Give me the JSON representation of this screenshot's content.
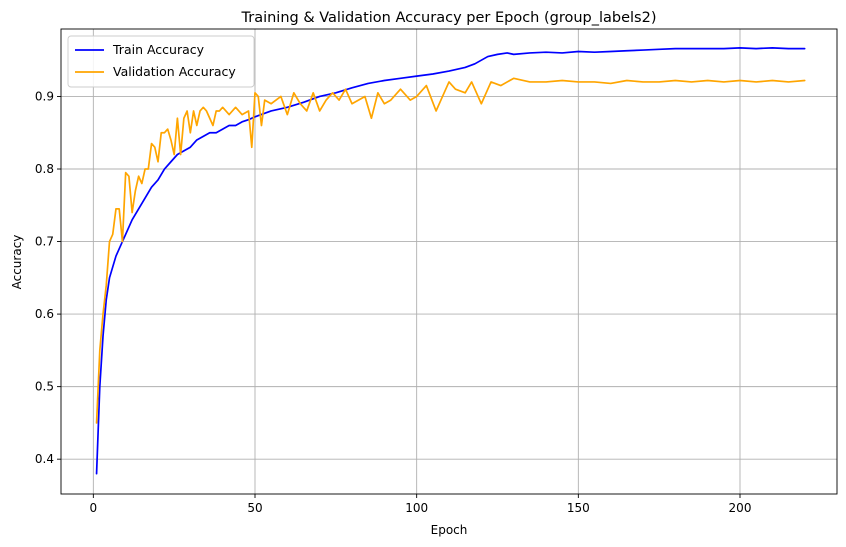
{
  "chart_data": {
    "type": "line",
    "title": "Training & Validation Accuracy per Epoch (group_labels2)",
    "xlabel": "Epoch",
    "ylabel": "Accuracy",
    "xlim": [
      -10,
      230
    ],
    "ylim": [
      0.352,
      0.993
    ],
    "xticks": [
      0,
      50,
      100,
      150,
      200
    ],
    "yticks": [
      0.4,
      0.5,
      0.6,
      0.7,
      0.8,
      0.9
    ],
    "xtick_labels": [
      "0",
      "50",
      "100",
      "150",
      "200"
    ],
    "ytick_labels": [
      "0.4",
      "0.5",
      "0.6",
      "0.7",
      "0.8",
      "0.9"
    ],
    "grid": true,
    "legend_position": "top-left",
    "series": [
      {
        "name": "Train Accuracy",
        "color": "#0000ff",
        "x": [
          1,
          2,
          3,
          4,
          5,
          6,
          7,
          8,
          9,
          10,
          12,
          14,
          16,
          18,
          20,
          22,
          24,
          26,
          28,
          30,
          32,
          34,
          36,
          38,
          40,
          42,
          44,
          46,
          48,
          50,
          55,
          60,
          65,
          70,
          75,
          80,
          85,
          90,
          95,
          100,
          105,
          110,
          115,
          118,
          120,
          122,
          125,
          128,
          130,
          135,
          140,
          145,
          150,
          155,
          160,
          165,
          170,
          175,
          180,
          185,
          190,
          195,
          200,
          205,
          210,
          215,
          220
        ],
        "y": [
          0.38,
          0.5,
          0.57,
          0.62,
          0.65,
          0.665,
          0.68,
          0.69,
          0.7,
          0.71,
          0.73,
          0.745,
          0.76,
          0.775,
          0.785,
          0.8,
          0.81,
          0.82,
          0.825,
          0.83,
          0.84,
          0.845,
          0.85,
          0.85,
          0.855,
          0.86,
          0.86,
          0.865,
          0.868,
          0.872,
          0.88,
          0.885,
          0.892,
          0.9,
          0.905,
          0.912,
          0.918,
          0.922,
          0.925,
          0.928,
          0.931,
          0.935,
          0.94,
          0.945,
          0.95,
          0.955,
          0.958,
          0.96,
          0.958,
          0.96,
          0.961,
          0.96,
          0.962,
          0.961,
          0.962,
          0.963,
          0.964,
          0.965,
          0.966,
          0.966,
          0.966,
          0.966,
          0.967,
          0.966,
          0.967,
          0.966,
          0.966
        ]
      },
      {
        "name": "Validation Accuracy",
        "color": "#ffa500",
        "x": [
          1,
          2,
          3,
          4,
          5,
          6,
          7,
          8,
          9,
          10,
          11,
          12,
          13,
          14,
          15,
          16,
          17,
          18,
          19,
          20,
          21,
          22,
          23,
          24,
          25,
          26,
          27,
          28,
          29,
          30,
          31,
          32,
          33,
          34,
          35,
          36,
          37,
          38,
          39,
          40,
          42,
          44,
          46,
          48,
          49,
          50,
          51,
          52,
          53,
          55,
          58,
          60,
          62,
          64,
          66,
          68,
          70,
          72,
          74,
          76,
          78,
          80,
          82,
          84,
          86,
          88,
          90,
          92,
          95,
          98,
          100,
          103,
          106,
          108,
          110,
          112,
          115,
          117,
          120,
          123,
          126,
          130,
          135,
          140,
          145,
          150,
          155,
          160,
          165,
          170,
          175,
          180,
          185,
          190,
          195,
          200,
          205,
          210,
          215,
          220
        ],
        "y": [
          0.45,
          0.55,
          0.6,
          0.64,
          0.7,
          0.71,
          0.745,
          0.745,
          0.7,
          0.795,
          0.79,
          0.74,
          0.77,
          0.79,
          0.78,
          0.8,
          0.8,
          0.835,
          0.83,
          0.81,
          0.85,
          0.85,
          0.855,
          0.84,
          0.82,
          0.87,
          0.82,
          0.87,
          0.88,
          0.85,
          0.88,
          0.86,
          0.88,
          0.885,
          0.88,
          0.87,
          0.86,
          0.88,
          0.88,
          0.885,
          0.875,
          0.885,
          0.875,
          0.88,
          0.83,
          0.905,
          0.9,
          0.86,
          0.895,
          0.89,
          0.9,
          0.875,
          0.905,
          0.89,
          0.88,
          0.905,
          0.88,
          0.895,
          0.905,
          0.895,
          0.91,
          0.89,
          0.895,
          0.9,
          0.87,
          0.905,
          0.89,
          0.895,
          0.91,
          0.895,
          0.9,
          0.915,
          0.88,
          0.9,
          0.92,
          0.91,
          0.905,
          0.92,
          0.89,
          0.92,
          0.915,
          0.925,
          0.92,
          0.92,
          0.922,
          0.92,
          0.92,
          0.918,
          0.922,
          0.92,
          0.92,
          0.922,
          0.92,
          0.922,
          0.92,
          0.922,
          0.92,
          0.922,
          0.92,
          0.922
        ]
      }
    ]
  }
}
